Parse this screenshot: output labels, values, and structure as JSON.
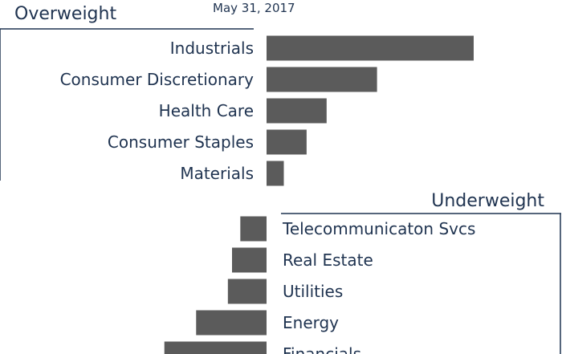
{
  "chart_data": {
    "type": "bar",
    "title": "May 31, 2017",
    "overweight": {
      "heading": "Overweight",
      "categories": [
        "Industrials",
        "Consumer Discretionary",
        "Health Care",
        "Consumer Staples",
        "Materials"
      ],
      "values": [
        3.0,
        1.6,
        0.87,
        0.58,
        0.25
      ]
    },
    "underweight": {
      "heading": "Underweight",
      "categories": [
        "Telecommunicaton Svcs",
        "Real Estate",
        "Utilities",
        "Energy",
        "Financials"
      ],
      "values": [
        -0.38,
        -0.5,
        -0.56,
        -1.02,
        -1.48
      ]
    },
    "xlabel": "",
    "ylabel": ""
  },
  "colors": {
    "bar": "#5b5b5b",
    "text": "#1f3350"
  }
}
